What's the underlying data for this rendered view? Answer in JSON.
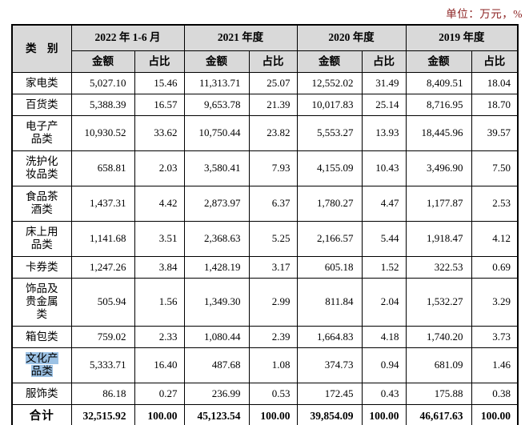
{
  "unit_label": "单位：万元，%",
  "table": {
    "category_header": "类　别",
    "col_groups": [
      {
        "label": "2022 年 1-6 月",
        "sub_amount": "金额",
        "sub_ratio": "占比"
      },
      {
        "label": "2021 年度",
        "sub_amount": "金额",
        "sub_ratio": "占比"
      },
      {
        "label": "2020 年度",
        "sub_amount": "金额",
        "sub_ratio": "占比"
      },
      {
        "label": "2019 年度",
        "sub_amount": "金额",
        "sub_ratio": "占比"
      }
    ],
    "rows": [
      {
        "label": "家电类",
        "highlight": false,
        "values": [
          "5,027.10",
          "15.46",
          "11,313.71",
          "25.07",
          "12,552.02",
          "31.49",
          "8,409.51",
          "18.04"
        ]
      },
      {
        "label": "百货类",
        "highlight": false,
        "values": [
          "5,388.39",
          "16.57",
          "9,653.78",
          "21.39",
          "10,017.83",
          "25.14",
          "8,716.95",
          "18.70"
        ]
      },
      {
        "label": "电子产\n品类",
        "highlight": false,
        "values": [
          "10,930.52",
          "33.62",
          "10,750.44",
          "23.82",
          "5,553.27",
          "13.93",
          "18,445.96",
          "39.57"
        ]
      },
      {
        "label": "洗护化\n妆品类",
        "highlight": false,
        "values": [
          "658.81",
          "2.03",
          "3,580.41",
          "7.93",
          "4,155.09",
          "10.43",
          "3,496.90",
          "7.50"
        ]
      },
      {
        "label": "食品茶\n酒类",
        "highlight": false,
        "values": [
          "1,437.31",
          "4.42",
          "2,873.97",
          "6.37",
          "1,780.27",
          "4.47",
          "1,177.87",
          "2.53"
        ]
      },
      {
        "label": "床上用\n品类",
        "highlight": false,
        "values": [
          "1,141.68",
          "3.51",
          "2,368.63",
          "5.25",
          "2,166.57",
          "5.44",
          "1,918.47",
          "4.12"
        ]
      },
      {
        "label": "卡券类",
        "highlight": false,
        "values": [
          "1,247.26",
          "3.84",
          "1,428.19",
          "3.17",
          "605.18",
          "1.52",
          "322.53",
          "0.69"
        ]
      },
      {
        "label": "饰品及\n贵金属\n类",
        "highlight": false,
        "values": [
          "505.94",
          "1.56",
          "1,349.30",
          "2.99",
          "811.84",
          "2.04",
          "1,532.27",
          "3.29"
        ]
      },
      {
        "label": "箱包类",
        "highlight": false,
        "values": [
          "759.02",
          "2.33",
          "1,080.44",
          "2.39",
          "1,664.83",
          "4.18",
          "1,740.20",
          "3.73"
        ]
      },
      {
        "label": "文化产\n品类",
        "highlight": true,
        "values": [
          "5,333.71",
          "16.40",
          "487.68",
          "1.08",
          "374.73",
          "0.94",
          "681.09",
          "1.46"
        ]
      },
      {
        "label": "服饰类",
        "highlight": false,
        "values": [
          "86.18",
          "0.27",
          "236.99",
          "0.53",
          "172.45",
          "0.43",
          "175.88",
          "0.38"
        ]
      }
    ],
    "total_row": {
      "label": "合计",
      "values": [
        "32,515.92",
        "100.00",
        "45,123.54",
        "100.00",
        "39,854.09",
        "100.00",
        "46,617.63",
        "100.00"
      ]
    }
  },
  "colors": {
    "header_bg": "#d9d9d9",
    "selection_highlight": "#9cc2e5",
    "unit_text": "#8b2020",
    "border": "#000000"
  }
}
